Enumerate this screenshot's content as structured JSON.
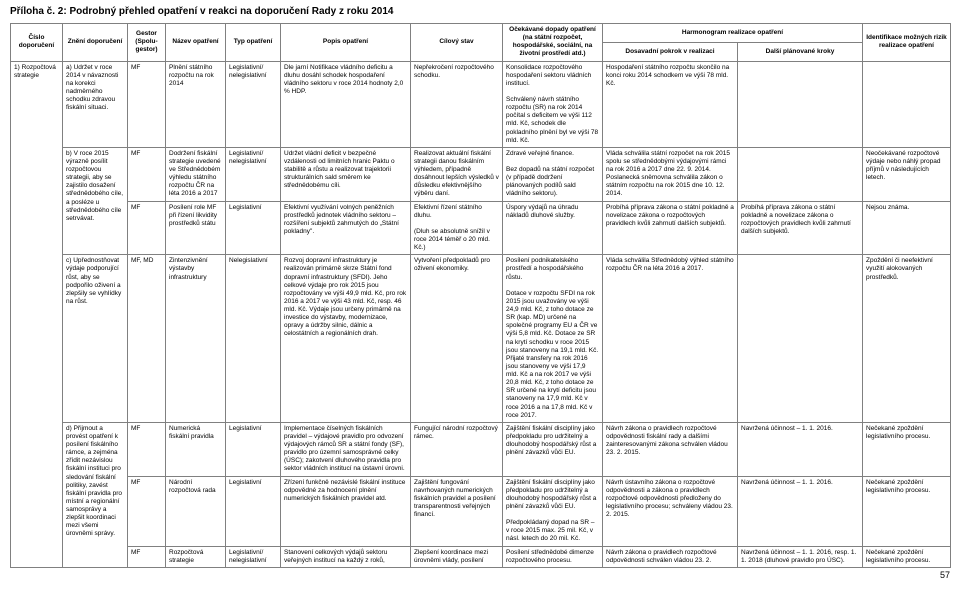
{
  "title": "Příloha č. 2: Podrobný přehled opatření v reakci na doporučení Rady z roku 2014",
  "page_number": "57",
  "headers": {
    "h1": "Číslo doporučení",
    "h2": "Znění doporučení",
    "h3": "Gestor (Spolu-gestor)",
    "h4": "Název opatření",
    "h5": "Typ opatření",
    "h6": "Popis opatření",
    "h7": "Cílový stav",
    "h8": "Očekávané dopady opatření (na státní rozpočet, hospodářské, sociální, na životní prostředí atd.)",
    "h9_parent": "Harmonogram realizace opatření",
    "h9a": "Dosavadní pokrok v realizaci",
    "h9b": "Další plánované kroky",
    "h10": "Identifikace možných rizik realizace opatření"
  },
  "r1": {
    "num": "1) Rozpočtová strategie",
    "zneni": "a) Udržet v roce 2014 v návaznosti na korekci nadměrného schodku zdravou fiskální situaci.",
    "gestor": "MF",
    "nazev": "Plnění státního rozpočtu na rok 2014",
    "typ": "Legislativní/ nelegislativní",
    "popis": "Dle jarní Notifikace vládního deficitu a dluhu dosáhl schodek hospodaření vládního sektoru v roce 2014 hodnoty 2,0 % HDP.",
    "cil": "Nepřekročení rozpočtového schodku.",
    "dopady": "Konsolidace rozpočtového hospodaření sektoru vládních institucí.\n\nSchválený návrh státního rozpočtu (SR) na rok 2014 počítal s deficitem ve výši 112 mld. Kč, schodek dle pokladního plnění byl ve výši 78 mld. Kč.",
    "pokrok": "Hospodaření státního rozpočtu skončilo na konci roku 2014 schodkem ve výši 78 mld. Kč.",
    "kroky": "",
    "rizika": ""
  },
  "r2": {
    "zneni": "b) V roce 2015 výrazně posílit rozpočtovou strategii, aby se zajistilo dosažení střednědobého cíle, a posléze u střednědobého cíle setrvávat.",
    "gestor": "MF",
    "nazev": "Dodržení fiskální strategie uvedené ve Střednědobém výhledu státního rozpočtu ČR na léta 2016 a 2017",
    "typ": "Legislativní/ nelegislativní",
    "popis": "Udržet vládní deficit v bezpečné vzdálenosti od limitních hranic Paktu o stabilitě a růstu a realizovat trajektorii strukturálních sald směrem ke střednědobému cíli.",
    "cil": "Realizovat aktuální fiskální strategii danou fiskálním výhledem, případně dosáhnout lepších výsledků v důsledku efektivnějšího výběru daní.",
    "dopady": "Zdravé veřejné finance.\n\nBez dopadů na státní rozpočet (v případě dodržení plánovaných podílů sald vládního sektoru).",
    "pokrok": "Vláda schválila státní rozpočet na rok 2015 spolu se střednědobými výdajovými rámci na rok 2016 a 2017 dne 22. 9. 2014. Poslanecká sněmovna schválila zákon o státním rozpočtu na rok 2015 dne 10. 12. 2014.",
    "kroky": "",
    "rizika": "Neočekávané rozpočtové výdaje nebo náhlý propad příjmů v následujících letech."
  },
  "r3": {
    "gestor": "MF",
    "nazev": "Posílení role MF při řízení likvidity prostředků státu",
    "typ": "Legislativní",
    "popis": "Efektivní využívání volných peněžních prostředků jednotek vládního sektoru – rozšíření subjektů zahrnutých do „Státní pokladny\".",
    "cil": "Efektivní řízení státního dluhu.\n\n(Dluh se absolutně snížil v roce 2014 téměř o 20 mld. Kč.)",
    "dopady": "Úspory výdajů na úhradu nákladů dluhové služby.",
    "pokrok": "Probíhá příprava zákona o státní pokladně a novelizace zákona o rozpočtových pravidlech kvůli zahrnutí dalších subjektů.",
    "kroky": "Probíhá příprava zákona o státní pokladně a novelizace zákona o rozpočtových pravidlech kvůli zahrnutí dalších subjektů.",
    "rizika": "Nejsou známa."
  },
  "r4": {
    "zneni": "c) Upřednostňovat výdaje podporující růst, aby se podpořilo oživení a zlepšily se vyhlídky na růst.",
    "gestor": "MF, MD",
    "nazev": "Zintenzivnění výstavby infrastruktury",
    "typ": "Nelegislativní",
    "popis": "Rozvoj dopravní infrastruktury je realizován primárně skrze Státní fond dopravní infrastruktury (SFDI). Jeho celkové výdaje pro rok 2015 jsou rozpočtovány ve výši 49,9 mld. Kč, pro rok 2016 a 2017 ve výši 43 mld. Kč, resp. 46 mld. Kč. Výdaje jsou určeny primárně na investice do výstavby, modernizace, opravy a údržby silnic, dálnic a celostátních a regionálních drah.",
    "cil": "Vytvoření předpokladů pro oživení ekonomiky.",
    "dopady": "Posílení podnikatelského prostředí a hospodářského růstu.\n\nDotace v rozpočtu SFDI na rok 2015 jsou uvažovány ve výši 24,9 mld. Kč, z toho dotace ze SR (kap. MD) určené na společné programy EU a ČR ve výši 5,8 mld. Kč. Dotace ze SR na krytí schodku v roce 2015 jsou stanoveny na 19,1 mld. Kč. Přijaté transfery na rok 2016 jsou stanoveny ve výši 17,9 mld. Kč a na rok 2017 ve výši 20,8 mld. Kč, z toho dotace ze SR určené na krytí deficitu jsou stanoveny na 17,9 mld. Kč v roce 2016 a na 17,8 mld. Kč v roce 2017.",
    "pokrok": "Vláda schválila Střednědobý výhled státního rozpočtu ČR na léta 2016 a 2017.",
    "kroky": "",
    "rizika": "Zpoždění či neefektivní využití alokovaných prostředků."
  },
  "r5": {
    "zneni": "d) Přijmout a provést opatření k posílení fiskálního rámce, a zejména zřídit nezávislou fiskální instituci pro sledování fiskální politiky, zavést fiskální pravidla pro místní a regionální samosprávy a zlepšit koordinaci mezi všemi úrovněmi správy.",
    "gestor": "MF",
    "nazev": "Numerická fiskální pravidla",
    "typ": "Legislativní",
    "popis": "Implementace číselných fiskálních pravidel – výdajové pravidlo pro odvození výdajových rámců SR a státní fondy (SF), pravidlo pro územní samosprávné celky (ÚSC); zakotvení dluhového pravidla pro sektor vládních institucí na ústavní úrovni.",
    "cil": "Fungující národní rozpočtový rámec.",
    "dopady": "Zajištění fiskální disciplíny jako předpokladu pro udržitelný a dlouhodobý hospodářský růst a plnění závazků vůči EU.",
    "pokrok": "Návrh zákona o pravidlech rozpočtové odpovědnosti fiskální rady a dalšími zainteresovanými zákona schválen vládou 23. 2. 2015.",
    "kroky": "Navržená účinnost – 1. 1. 2016.",
    "rizika": "Nečekané zpoždění legislativního procesu."
  },
  "r6": {
    "gestor": "MF",
    "nazev": "Národní rozpočtová rada",
    "typ": "Legislativní",
    "popis": "Zřízení funkčně nezávislé fiskální instituce odpovědné za hodnocení plnění numerických fiskálních pravidel atd.",
    "cil": "Zajištění fungování navrhovaných numerických fiskálních pravidel a posílení transparentnosti veřejných financí.",
    "dopady": "Zajištění fiskální disciplíny jako předpokladu pro udržitelný a dlouhodobý hospodářský růst a plnění závazků vůči EU.\n\nPředpokládaný dopad na SR – v roce 2015 max. 25 mil. Kč, v násl. letech do 20 mil. Kč.",
    "pokrok": "Návrh ústavního zákona o rozpočtové odpovědnosti a zákona o pravidlech rozpočtové odpovědnosti předloženy do legislativního procesu; schváleny vládou 23. 2. 2015.",
    "kroky": "Navržená účinnost – 1. 1. 2016.",
    "rizika": "Nečekané zpoždění legislativního procesu."
  },
  "r7": {
    "gestor": "MF",
    "nazev": "Rozpočtová strategie",
    "typ": "Legislativní/ nelegislativní",
    "popis": "Stanovení celkových výdajů sektoru veřejných institucí na každý z roků,",
    "cil": "Zlepšení koordinace mezi úrovněmi vlády, posílení",
    "dopady": "Posílení střednědobé dimenze rozpočtového procesu.",
    "pokrok": "Návrh zákona o pravidlech rozpočtové odpovědnosti schválen vládou 23. 2.",
    "kroky": "Navržená účinnost – 1. 1. 2016, resp. 1. 1. 2018 (dluhové pravidlo pro ÚSC).",
    "rizika": "Nečekané zpoždění legislativního procesu."
  }
}
